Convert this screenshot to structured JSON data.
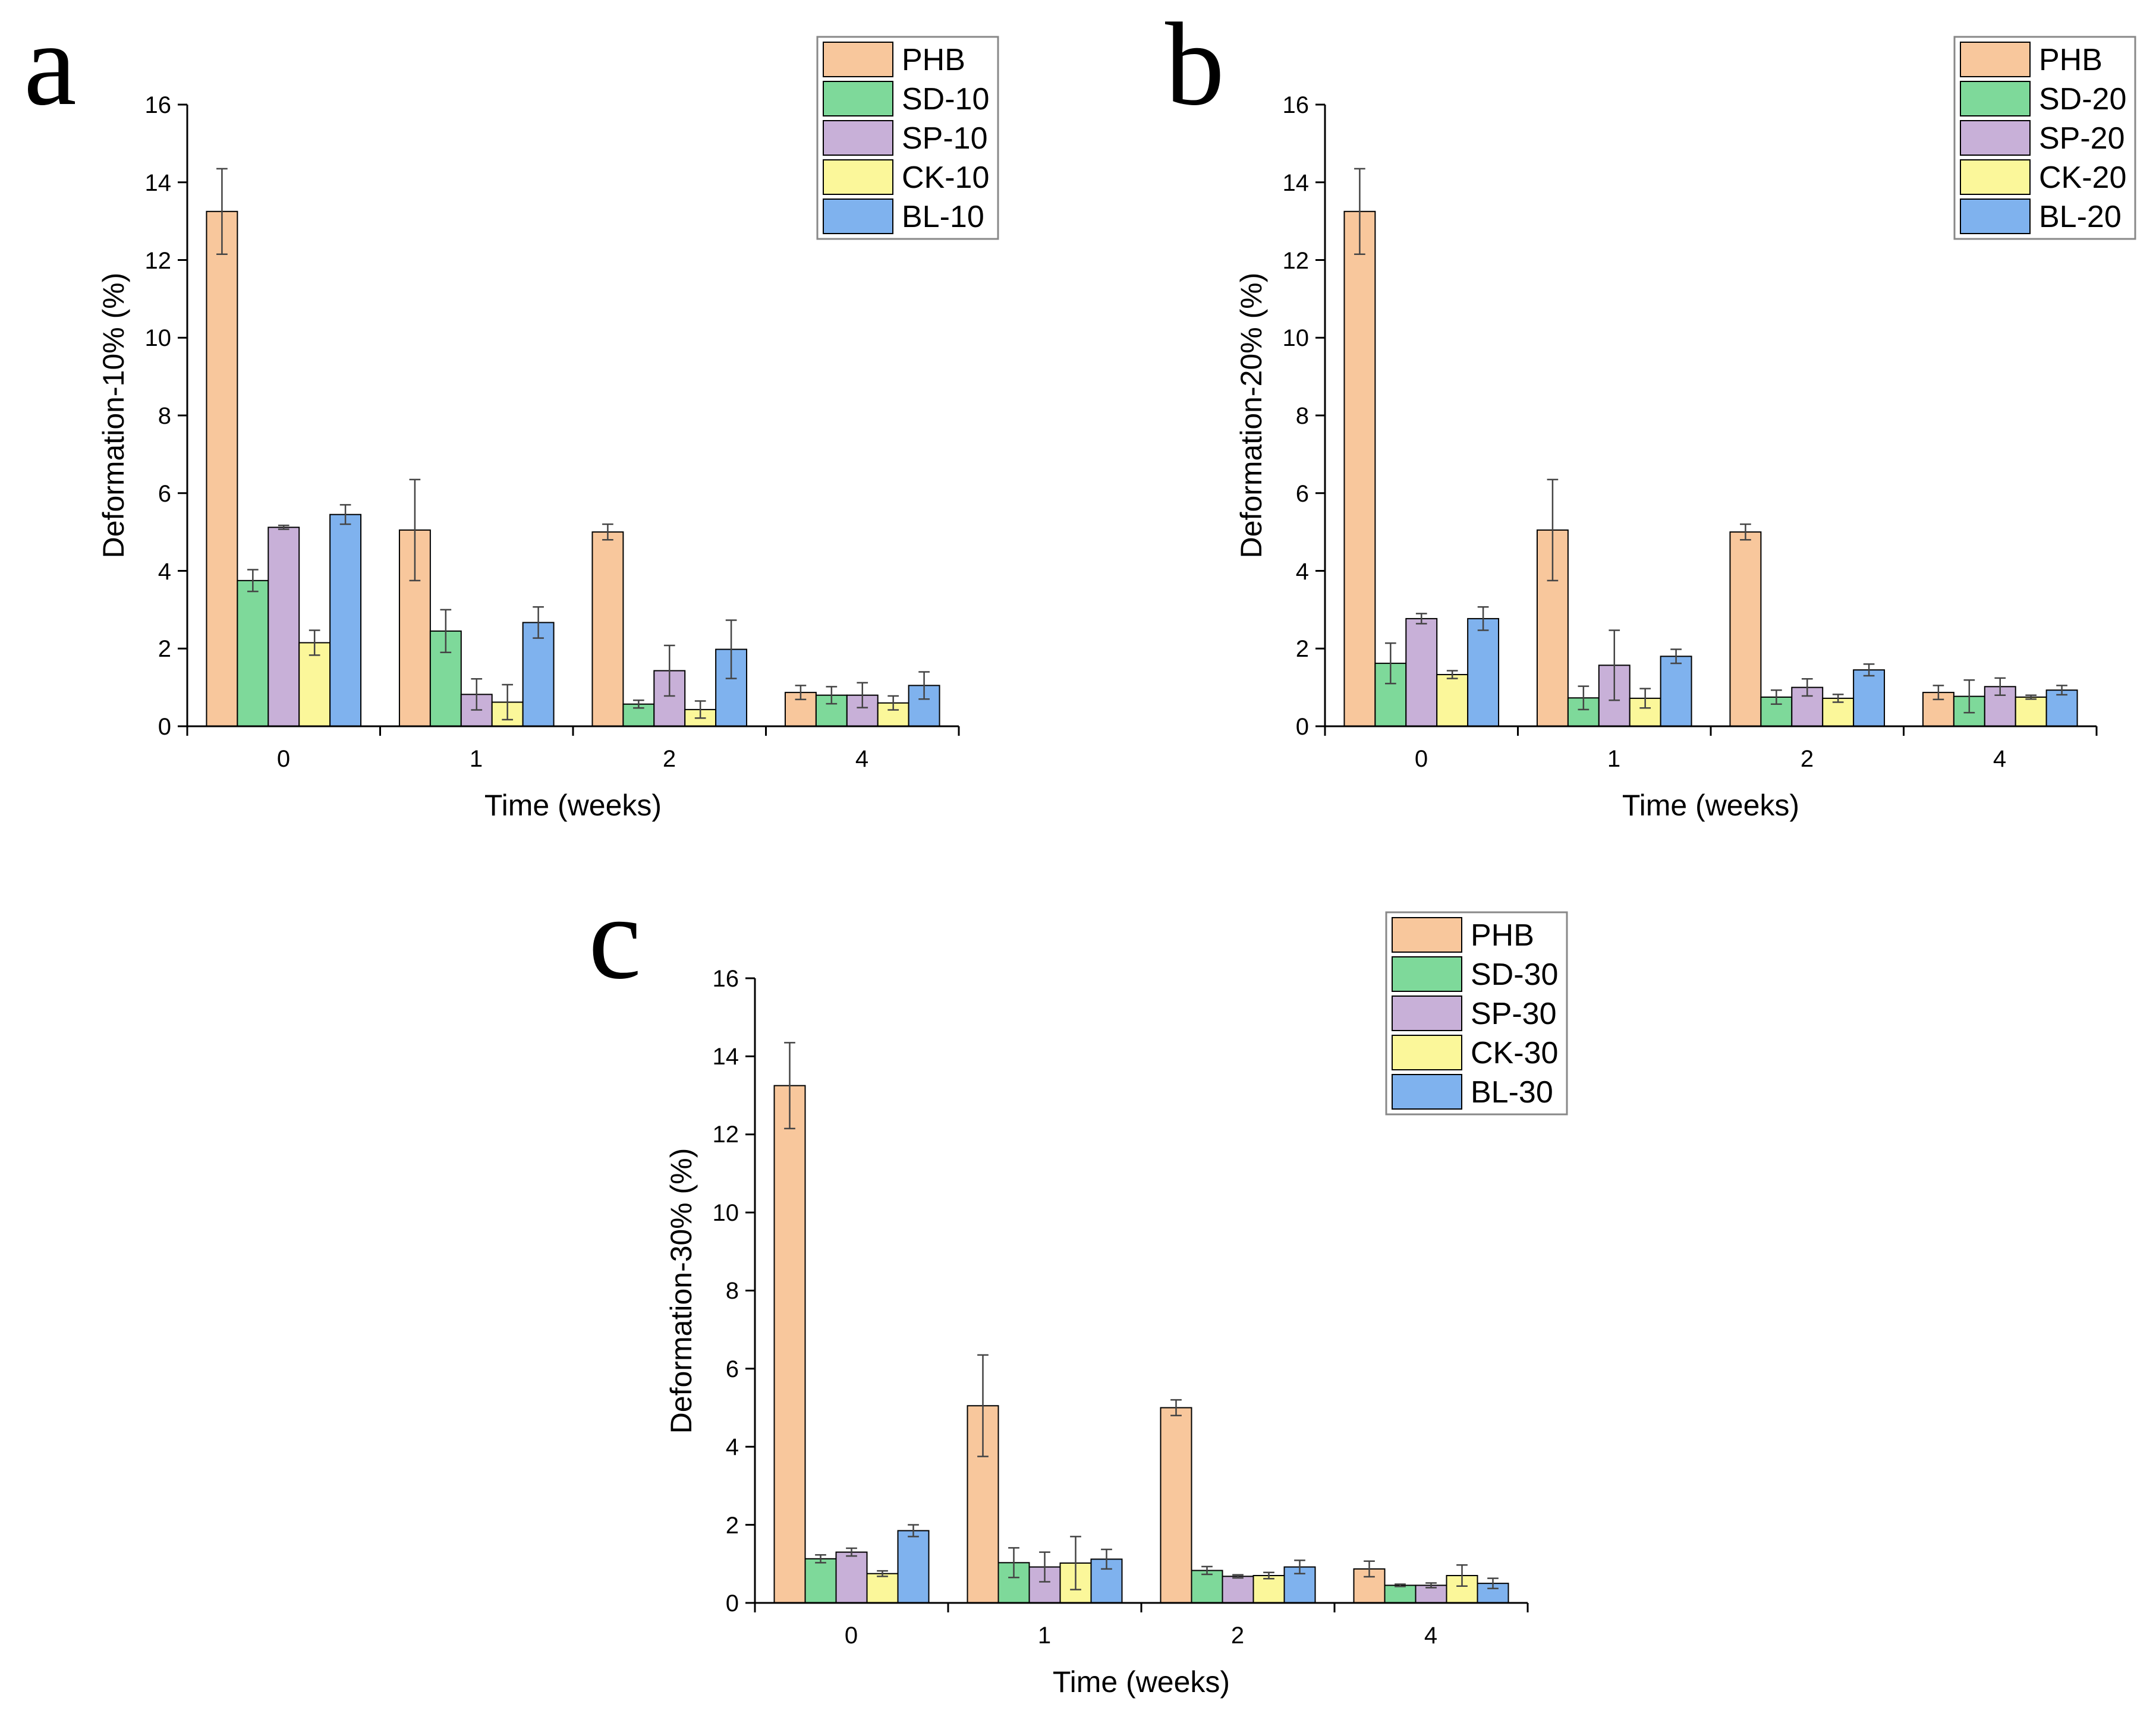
{
  "colors": {
    "PHB": "#F8C79C",
    "SD": "#7ED99A",
    "SP": "#C8B0D8",
    "CK": "#FBF79A",
    "BL": "#7FB2EE",
    "bar_stroke": "#000000"
  },
  "chart_data": [
    {
      "panel": "a",
      "type": "bar",
      "xlabel": "Time (weeks)",
      "ylabel": "Deformation-10% (%)",
      "ylim": [
        0,
        16
      ],
      "yticks": [
        0,
        2,
        4,
        6,
        8,
        10,
        12,
        14,
        16
      ],
      "categories": [
        "0",
        "1",
        "2",
        "4"
      ],
      "legend_position": "top-right",
      "series": [
        {
          "name": "PHB",
          "color_key": "PHB",
          "values": [
            13.25,
            5.05,
            5.0,
            0.87
          ],
          "errors": [
            1.1,
            1.3,
            0.2,
            0.18
          ]
        },
        {
          "name": "SD-10",
          "color_key": "SD",
          "values": [
            3.75,
            2.45,
            0.57,
            0.8
          ],
          "errors": [
            0.28,
            0.55,
            0.1,
            0.22
          ]
        },
        {
          "name": "SP-10",
          "color_key": "SP",
          "values": [
            5.12,
            0.82,
            1.43,
            0.8
          ],
          "errors": [
            0.05,
            0.4,
            0.65,
            0.32
          ]
        },
        {
          "name": "CK-10",
          "color_key": "CK",
          "values": [
            2.15,
            0.62,
            0.43,
            0.6
          ],
          "errors": [
            0.32,
            0.45,
            0.22,
            0.18
          ]
        },
        {
          "name": "BL-10",
          "color_key": "BL",
          "values": [
            5.45,
            2.67,
            1.98,
            1.05
          ],
          "errors": [
            0.25,
            0.4,
            0.75,
            0.35
          ]
        }
      ]
    },
    {
      "panel": "b",
      "type": "bar",
      "xlabel": "Time (weeks)",
      "ylabel": "Deformation-20% (%)",
      "ylim": [
        0,
        16
      ],
      "yticks": [
        0,
        2,
        4,
        6,
        8,
        10,
        12,
        14,
        16
      ],
      "categories": [
        "0",
        "1",
        "2",
        "4"
      ],
      "legend_position": "top-right",
      "series": [
        {
          "name": "PHB",
          "color_key": "PHB",
          "values": [
            13.25,
            5.05,
            5.0,
            0.87
          ],
          "errors": [
            1.1,
            1.3,
            0.2,
            0.18
          ]
        },
        {
          "name": "SD-20",
          "color_key": "SD",
          "values": [
            1.62,
            0.73,
            0.75,
            0.77
          ],
          "errors": [
            0.52,
            0.3,
            0.18,
            0.42
          ]
        },
        {
          "name": "SP-20",
          "color_key": "SP",
          "values": [
            2.77,
            1.57,
            1.0,
            1.02
          ],
          "errors": [
            0.13,
            0.9,
            0.22,
            0.22
          ]
        },
        {
          "name": "CK-20",
          "color_key": "CK",
          "values": [
            1.33,
            0.72,
            0.72,
            0.75
          ],
          "errors": [
            0.1,
            0.25,
            0.1,
            0.05
          ]
        },
        {
          "name": "BL-20",
          "color_key": "BL",
          "values": [
            2.77,
            1.8,
            1.45,
            0.93
          ],
          "errors": [
            0.3,
            0.18,
            0.15,
            0.12
          ]
        }
      ]
    },
    {
      "panel": "c",
      "type": "bar",
      "xlabel": "Time (weeks)",
      "ylabel": "Deformation-30% (%)",
      "ylim": [
        0,
        16
      ],
      "yticks": [
        0,
        2,
        4,
        6,
        8,
        10,
        12,
        14,
        16
      ],
      "categories": [
        "0",
        "1",
        "2",
        "4"
      ],
      "legend_position": "top-right",
      "series": [
        {
          "name": "PHB",
          "color_key": "PHB",
          "values": [
            13.25,
            5.05,
            5.0,
            0.87
          ],
          "errors": [
            1.1,
            1.3,
            0.2,
            0.2
          ]
        },
        {
          "name": "SD-30",
          "color_key": "SD",
          "values": [
            1.13,
            1.03,
            0.83,
            0.45
          ],
          "errors": [
            0.1,
            0.38,
            0.1,
            0.03
          ]
        },
        {
          "name": "SP-30",
          "color_key": "SP",
          "values": [
            1.3,
            0.92,
            0.68,
            0.45
          ],
          "errors": [
            0.1,
            0.38,
            0.04,
            0.06
          ]
        },
        {
          "name": "CK-30",
          "color_key": "CK",
          "values": [
            0.75,
            1.02,
            0.7,
            0.7
          ],
          "errors": [
            0.07,
            0.68,
            0.08,
            0.27
          ]
        },
        {
          "name": "BL-30",
          "color_key": "BL",
          "values": [
            1.85,
            1.12,
            0.92,
            0.5
          ],
          "errors": [
            0.15,
            0.25,
            0.17,
            0.13
          ]
        }
      ]
    }
  ]
}
